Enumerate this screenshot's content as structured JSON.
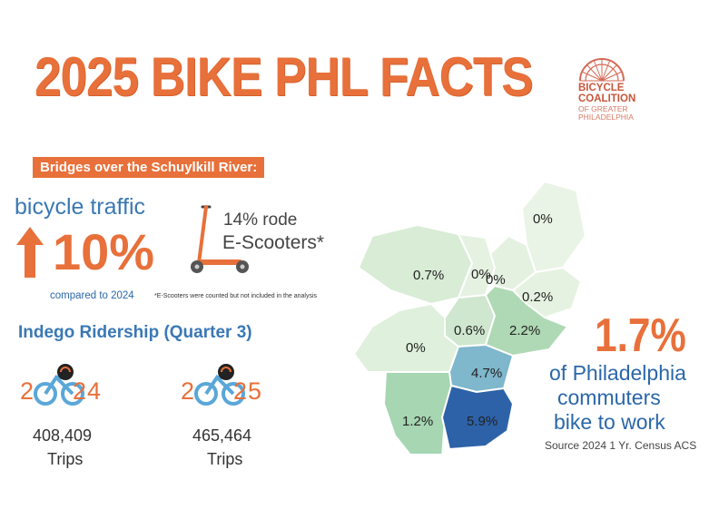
{
  "title": "2025 BIKE PHL FACTS",
  "logo": {
    "line1": "BICYCLE",
    "line2": "COALITION",
    "line3": "OF GREATER",
    "line4": "PHILADELPHIA"
  },
  "bridges": {
    "banner": "Bridges over the Schuylkill River:",
    "traffic_label": "bicycle traffic",
    "traffic_change": "10%",
    "compared": "compared to 2024",
    "scooter_pct": "14%  rode",
    "scooter_label": "E-Scooters*",
    "scooter_note": "*E-Scooters were counted but not included in the analysis"
  },
  "indego": {
    "heading": "Indego Ridership (Quarter 3)",
    "years": [
      {
        "prefix": "2",
        "suffix": "24",
        "trips": "408,409",
        "trips_label": "Trips"
      },
      {
        "prefix": "2",
        "suffix": "25",
        "trips": "465,464",
        "trips_label": "Trips"
      }
    ]
  },
  "map": {
    "regions": [
      {
        "label": "0%",
        "color": "#eaf4e6"
      },
      {
        "label": "0%",
        "color": "#e4f1e0"
      },
      {
        "label": "0.2%",
        "color": "#e6f2e1"
      },
      {
        "label": "0.7%",
        "color": "#d8ecd6"
      },
      {
        "label": "0%",
        "color": "#e6f2e1"
      },
      {
        "label": "0.6%",
        "color": "#cfe7cf"
      },
      {
        "label": "2.2%",
        "color": "#aed9b4"
      },
      {
        "label": "0%",
        "color": "#dff0dc"
      },
      {
        "label": "4.7%",
        "color": "#7fb7cc"
      },
      {
        "label": "1.2%",
        "color": "#a6d6b2"
      },
      {
        "label": "5.9%",
        "color": "#2d62a8"
      }
    ]
  },
  "commute": {
    "pct": "1.7%",
    "line1": "of Philadelphia",
    "line2": "commuters",
    "line3": "bike to work",
    "source": "Source 2024  1 Yr. Census ACS"
  },
  "colors": {
    "accent": "#e8703a",
    "blue": "#3a78b5"
  }
}
